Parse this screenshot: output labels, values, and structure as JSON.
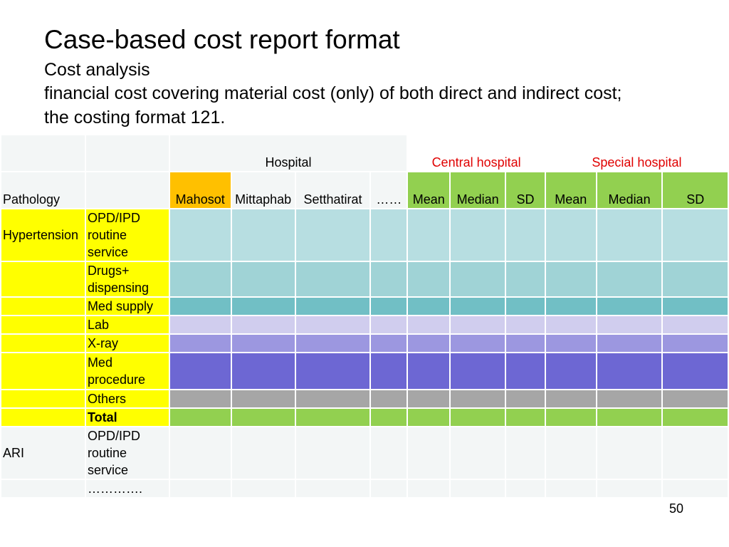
{
  "slide": {
    "title": "Case-based cost report format",
    "subtitle_1": "Cost analysis",
    "subtitle_2": "financial cost covering material cost (only) of both direct and indirect cost;",
    "subtitle_3": "the costing format 121.",
    "page_number": "50"
  },
  "table": {
    "group_headers": {
      "hospital": "Hospital",
      "central": "Central hospital",
      "special": "Special hospital"
    },
    "columns": {
      "pathology": "Pathology",
      "mahosot": "Mahosot",
      "mittaphab": "Mittaphab",
      "setthatirat": "Setthatirat",
      "ellipsis": "……",
      "central_mean": "Mean",
      "central_median": "Median",
      "central_sd": "SD",
      "special_mean": "Mean",
      "special_median": "Median",
      "special_sd": "SD"
    },
    "pathologies": {
      "hypertension": "Hypertension",
      "ari": "ARI"
    },
    "items": {
      "opd": "OPD/IPD routine service",
      "drugs": "Drugs+ dispensing",
      "med_supply": "Med supply",
      "lab": "Lab",
      "xray": "X-ray",
      "med_procedure": "Med procedure",
      "others": "Others",
      "total": "Total",
      "ari_opd": "OPD/IPD routine service",
      "more": "…………."
    },
    "colors": {
      "header_highlight": "#ffc000",
      "summary_header": "#92d050",
      "pathology_highlight": "#ffff00"
    }
  }
}
